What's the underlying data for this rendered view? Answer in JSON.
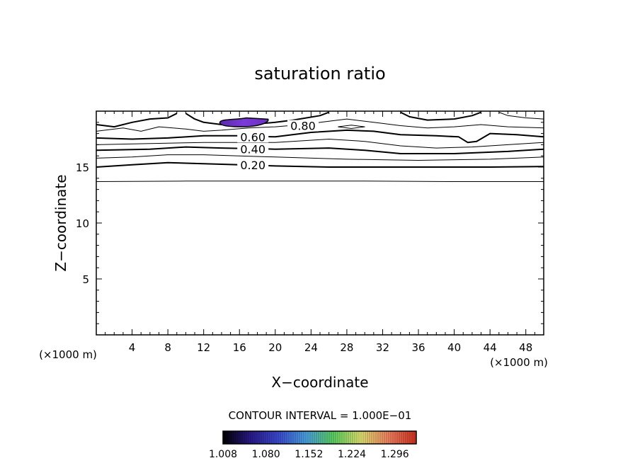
{
  "chart_data": {
    "type": "contour",
    "title": "saturation ratio",
    "xlabel": "X−coordinate",
    "ylabel": "Z−coordinate",
    "x_unit": "(×1000 m)",
    "y_unit": "(×1000 m)",
    "xlim": [
      0,
      50
    ],
    "ylim": [
      0,
      20
    ],
    "x_ticks": [
      4,
      8,
      12,
      16,
      20,
      24,
      28,
      32,
      36,
      40,
      44,
      48
    ],
    "y_ticks": [
      5,
      10,
      15
    ],
    "contour_labels": [
      {
        "text": "0.80",
        "x": 23.1,
        "y": 18.7
      },
      {
        "text": "0.60",
        "x": 17.5,
        "y": 17.7
      },
      {
        "text": "0.40",
        "x": 17.5,
        "y": 16.6
      },
      {
        "text": "0.20",
        "x": 17.5,
        "y": 15.2
      }
    ],
    "contour_levels": [
      {
        "level": 0.1,
        "bold": false,
        "points": [
          [
            0,
            13.7
          ],
          [
            10,
            13.75
          ],
          [
            20,
            13.75
          ],
          [
            30,
            13.75
          ],
          [
            40,
            13.7
          ],
          [
            50,
            13.7
          ]
        ]
      },
      {
        "level": 0.2,
        "bold": true,
        "points": [
          [
            0,
            15.0
          ],
          [
            4,
            15.2
          ],
          [
            8,
            15.4
          ],
          [
            12,
            15.3
          ],
          [
            16,
            15.2
          ],
          [
            20,
            15.1
          ],
          [
            26,
            15.0
          ],
          [
            34,
            15.0
          ],
          [
            44,
            15.0
          ],
          [
            50,
            15.05
          ]
        ]
      },
      {
        "level": 0.3,
        "bold": false,
        "points": [
          [
            0,
            15.8
          ],
          [
            4,
            15.9
          ],
          [
            8,
            16.1
          ],
          [
            12,
            16.1
          ],
          [
            16,
            16.0
          ],
          [
            20,
            15.9
          ],
          [
            28,
            15.7
          ],
          [
            36,
            15.6
          ],
          [
            44,
            15.7
          ],
          [
            50,
            15.9
          ]
        ]
      },
      {
        "level": 0.4,
        "bold": true,
        "points": [
          [
            0,
            16.5
          ],
          [
            6,
            16.6
          ],
          [
            10,
            16.8
          ],
          [
            14,
            16.7
          ],
          [
            20,
            16.6
          ],
          [
            26,
            16.7
          ],
          [
            30,
            16.5
          ],
          [
            34,
            16.2
          ],
          [
            40,
            16.2
          ],
          [
            46,
            16.4
          ],
          [
            50,
            16.6
          ]
        ]
      },
      {
        "level": 0.5,
        "bold": false,
        "points": [
          [
            0,
            17.0
          ],
          [
            6,
            17.1
          ],
          [
            12,
            17.2
          ],
          [
            16,
            17.2
          ],
          [
            20,
            17.2
          ],
          [
            26,
            17.5
          ],
          [
            30,
            17.3
          ],
          [
            34,
            16.9
          ],
          [
            38,
            16.7
          ],
          [
            42,
            16.8
          ],
          [
            46,
            17.0
          ],
          [
            50,
            17.2
          ]
        ]
      },
      {
        "level": 0.6,
        "bold": true,
        "points": [
          [
            0,
            17.6
          ],
          [
            4,
            17.5
          ],
          [
            8,
            17.6
          ],
          [
            12,
            17.8
          ],
          [
            16,
            17.8
          ],
          [
            20,
            17.7
          ],
          [
            24,
            18.1
          ],
          [
            28,
            18.3
          ],
          [
            31,
            18.2
          ],
          [
            34,
            17.9
          ],
          [
            38,
            17.8
          ],
          [
            40.5,
            17.7
          ],
          [
            41.5,
            17.2
          ],
          [
            42.5,
            17.3
          ],
          [
            44,
            18.0
          ],
          [
            47,
            17.9
          ],
          [
            50,
            17.7
          ]
        ]
      },
      {
        "level": 0.7,
        "bold": false,
        "points": [
          [
            0,
            18.2
          ],
          [
            3,
            18.5
          ],
          [
            5,
            18.2
          ],
          [
            7,
            18.6
          ],
          [
            10,
            18.4
          ],
          [
            12,
            18.2
          ],
          [
            14,
            18.3
          ],
          [
            17,
            18.5
          ],
          [
            20,
            18.6
          ],
          [
            23,
            18.8
          ],
          [
            26,
            19.1
          ],
          [
            28,
            19.3
          ],
          [
            31,
            19.0
          ],
          [
            34,
            18.7
          ],
          [
            37,
            18.5
          ],
          [
            40,
            18.6
          ],
          [
            43,
            18.8
          ],
          [
            46,
            18.6
          ],
          [
            50,
            18.5
          ]
        ]
      },
      {
        "level": 0.8,
        "bold": true,
        "points": [
          [
            0,
            18.8
          ],
          [
            2,
            18.6
          ],
          [
            4,
            19.0
          ],
          [
            6,
            19.3
          ],
          [
            8,
            19.4
          ],
          [
            9,
            19.8
          ]
        ]
      },
      {
        "level": 0.8,
        "bold": true,
        "points": [
          [
            10,
            19.8
          ],
          [
            11,
            19.3
          ],
          [
            12,
            19.0
          ],
          [
            14,
            18.8
          ],
          [
            17,
            18.8
          ],
          [
            20,
            19.0
          ],
          [
            22,
            19.2
          ],
          [
            25,
            19.6
          ],
          [
            26,
            19.9
          ]
        ]
      },
      {
        "level": 0.8,
        "bold": true,
        "points": [
          [
            34,
            19.9
          ],
          [
            35,
            19.5
          ],
          [
            37,
            19.2
          ],
          [
            40,
            19.3
          ],
          [
            42,
            19.6
          ],
          [
            43,
            19.9
          ]
        ]
      },
      {
        "level": 0.9,
        "bold": false,
        "points": [
          [
            45,
            19.9
          ],
          [
            46,
            19.6
          ],
          [
            48,
            19.4
          ],
          [
            50,
            19.3
          ]
        ]
      },
      {
        "level": 0.9,
        "bold": false,
        "points": [
          [
            27,
            18.6
          ],
          [
            28.5,
            18.45
          ],
          [
            30,
            18.6
          ],
          [
            28.5,
            18.75
          ],
          [
            27,
            18.6
          ]
        ]
      }
    ],
    "supersaturation_region": {
      "x": [
        13.8,
        19.2
      ],
      "y": [
        18.6,
        19.4
      ]
    },
    "contour_interval_text": "CONTOUR INTERVAL = 1.000E−01",
    "colorbar": {
      "range": [
        1.008,
        1.332
      ],
      "tick_labels": [
        "1.008",
        "1.080",
        "1.152",
        "1.224",
        "1.296"
      ],
      "colors": [
        "#000000",
        "#2a1a8a",
        "#3a4ad0",
        "#4aa0e0",
        "#5ad060",
        "#e0e070",
        "#f08060",
        "#d03020"
      ]
    }
  }
}
